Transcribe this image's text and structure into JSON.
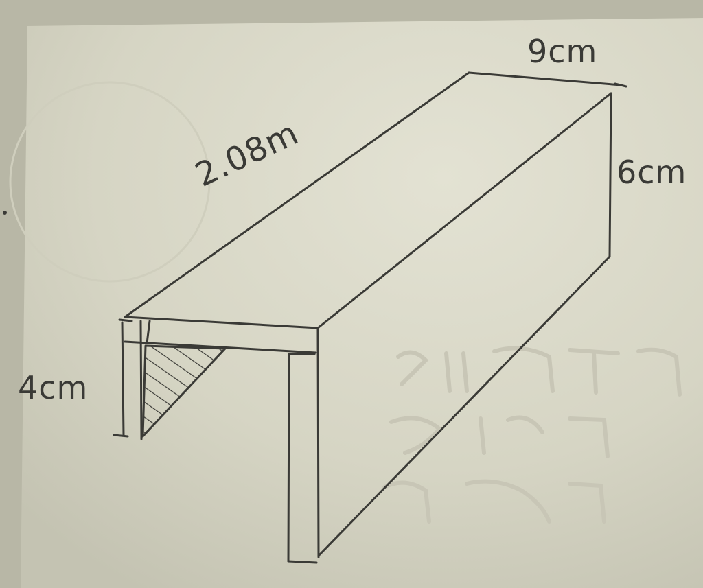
{
  "labels": {
    "top_width": "9cm",
    "length": "2.08m",
    "height": "6cm",
    "leg_height": "4cm"
  },
  "colors": {
    "paper": "#d9d8c6",
    "ink": "#3a3a36",
    "bleed_text": "#c6c4b5"
  }
}
